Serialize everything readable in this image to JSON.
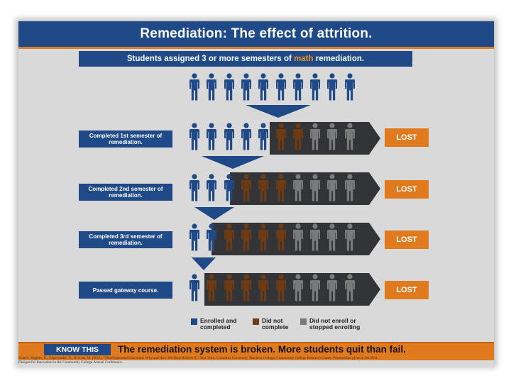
{
  "title": "Remediation: The effect of attrition.",
  "subtitle": {
    "before": "Students assigned 3 or more semesters of ",
    "highlight": "math",
    "after": " remediation."
  },
  "colors": {
    "navy": "#1f4a87",
    "orange": "#e07a1f",
    "enrolled": "#1f4a87",
    "not_complete": "#6e3b12",
    "not_enrolled": "#7a7a7c",
    "band": "#333437"
  },
  "rows": [
    {
      "label": "Completed 1st semester of remediation.",
      "lost": "LOST"
    },
    {
      "label": "Completed 2nd semester of remediation.",
      "lost": "LOST"
    },
    {
      "label": "Completed 3rd semester of remediation.",
      "lost": "LOST"
    },
    {
      "label": "Passed gateway course.",
      "lost": "LOST"
    }
  ],
  "legend": [
    {
      "label": "Enrolled and completed",
      "color_key": "enrolled",
      "icon": "blue-square-icon"
    },
    {
      "label": "Did not complete",
      "color_key": "not_complete",
      "icon": "brown-square-icon"
    },
    {
      "label": "Did not enroll or stopped enrolling",
      "color_key": "not_enrolled",
      "icon": "gray-square-icon"
    }
  ],
  "footer": {
    "know_label": "KNOW THIS",
    "message": "The remediation system is broken. More students quit than fail."
  },
  "citation_lines": [
    "Source: Hughes, K., Edgecombe, N., & Scott, M. (2011). \"Developmental Education: Why and How We Must Reform It.\" New York: Columbia University, Teachers College, Community College Research Center. Presentation given at the 2011",
    "Designs for Innovation in the Community College Annual Conference."
  ]
}
